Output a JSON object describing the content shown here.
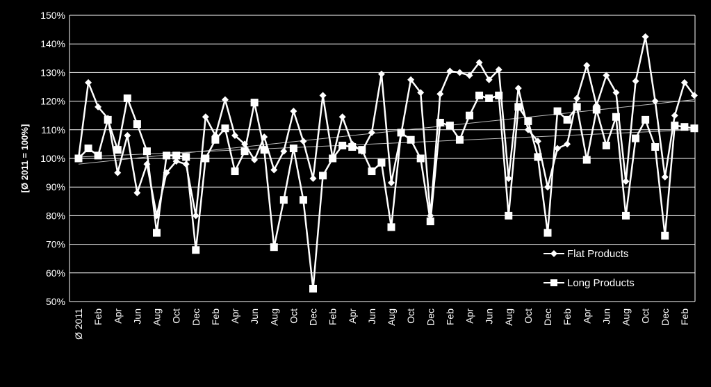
{
  "chart_data": {
    "type": "line",
    "ylabel": "[Ø 2011 = 100%]",
    "y_tick_labels": [
      "50%",
      "60%",
      "70%",
      "80%",
      "90%",
      "100%",
      "110%",
      "120%",
      "130%",
      "140%",
      "150%"
    ],
    "ylim": [
      50,
      150
    ],
    "grid": true,
    "legend_position": "bottom-right",
    "x_tick_labels": [
      "Ø 2011",
      "Feb",
      "Apr",
      "Jun",
      "Aug",
      "Oct",
      "Dec",
      "Feb",
      "Apr",
      "Jun",
      "Aug",
      "Oct",
      "Dec",
      "Feb",
      "Apr",
      "Jun",
      "Aug",
      "Oct",
      "Dec",
      "Feb",
      "Apr",
      "Jun",
      "Aug",
      "Oct",
      "Dec",
      "Feb",
      "Apr",
      "Jun",
      "Aug",
      "Oct",
      "Dec",
      "Feb"
    ],
    "colors": {
      "background": "#000000",
      "line": "#ffffff",
      "grid": "#ffffff",
      "trend": "#bbbbbb"
    },
    "series": [
      {
        "name": "Flat Products",
        "marker": "diamond",
        "values": [
          100,
          126.5,
          118,
          114,
          95,
          108,
          88,
          98,
          80,
          95,
          99,
          98,
          80,
          114.5,
          108,
          120.5,
          108,
          105,
          99.5,
          107.5,
          96,
          102.5,
          116.5,
          106,
          93,
          122,
          100,
          114.5,
          105,
          102.5,
          109,
          129.5,
          91.5,
          108.5,
          127.5,
          123,
          80,
          122.5,
          130.5,
          130,
          129,
          133.5,
          127.5,
          131,
          93,
          124.5,
          110,
          106,
          90,
          103.5,
          105,
          121,
          132.5,
          118.5,
          129,
          123,
          92,
          127,
          142.5,
          120,
          93.5,
          115,
          126.5,
          122
        ]
      },
      {
        "name": "Long Products",
        "marker": "square",
        "values": [
          100,
          103.5,
          101,
          113.5,
          103,
          121,
          112,
          102.5,
          74,
          101,
          101,
          100.5,
          68,
          100,
          106.5,
          110.5,
          95.5,
          102.5,
          119.5,
          103,
          69,
          85.5,
          103.5,
          85.5,
          54.5,
          94,
          100,
          104.5,
          104,
          103,
          95.5,
          98.5,
          76,
          109,
          106.5,
          100,
          78,
          112.5,
          111.5,
          106.5,
          115,
          122,
          121,
          122,
          80,
          118,
          113,
          100.5,
          74,
          116.5,
          113.5,
          118,
          99.5,
          117,
          104.5,
          114.5,
          80,
          107,
          113.5,
          104,
          73,
          111.5,
          111,
          110.5
        ]
      }
    ],
    "trendlines": [
      {
        "series": "Flat Products",
        "start": 98,
        "end": 120.5
      },
      {
        "series": "Long Products",
        "start": 100.5,
        "end": 110
      }
    ]
  }
}
